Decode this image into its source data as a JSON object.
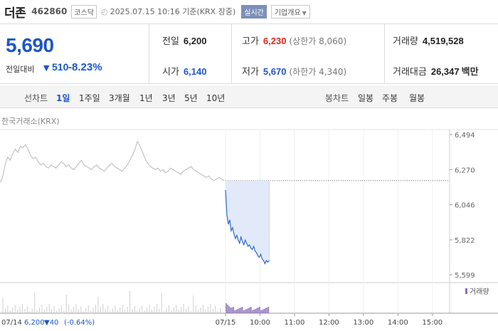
{
  "header": {
    "name": "더존",
    "code": "462860",
    "market": "코스닥",
    "datetime": "2025.07.15 10:16 기준(KRX 장중)",
    "realtime": "실시간",
    "overview": "기업개요"
  },
  "quote": {
    "price": "5,690",
    "change_label": "전일대비",
    "change_value": "510",
    "change_pct": "-8.23%",
    "prev_close": {
      "label": "전일",
      "value": "6,200"
    },
    "open": {
      "label": "시가",
      "value": "6,140"
    },
    "high": {
      "label": "고가",
      "value": "6,230",
      "sub": "(상한가 8,060)"
    },
    "low": {
      "label": "저가",
      "value": "5,670",
      "sub": "(하한가 4,340)"
    },
    "volume": {
      "label": "거래량",
      "value": "4,519,528"
    },
    "amount": {
      "label": "거래대금",
      "value": "26,347",
      "unit": "백만"
    }
  },
  "period_bar": {
    "line_label": "선차트",
    "line_periods": [
      "1일",
      "1주일",
      "3개월",
      "1년",
      "3년",
      "5년",
      "10년"
    ],
    "active": "1일",
    "candle_label": "봉차트",
    "candle_periods": [
      "일봉",
      "주봉",
      "월봉"
    ]
  },
  "chart_data": {
    "type": "line",
    "source_label": "한국거래소(KRX)",
    "y_ticks": [
      "6,494",
      "6,270",
      "6,046",
      "5,822",
      "5,599"
    ],
    "ylim": [
      5599,
      6494
    ],
    "x_labels": [
      "07/14",
      "07/15",
      "10:00",
      "11:00",
      "12:00",
      "13:00",
      "14:00",
      "15:00"
    ],
    "prev_close": 6200,
    "volume_legend": "거래량",
    "footer": {
      "date": "07/14",
      "price": "6,200",
      "change": "▼40",
      "pct": "(-0.64%)"
    },
    "series": [
      {
        "values_prev_day": [
          6190,
          6220,
          6300,
          6350,
          6330,
          6370,
          6400,
          6380,
          6420,
          6410,
          6430,
          6400,
          6360,
          6340,
          6350,
          6320,
          6300,
          6310,
          6290,
          6280,
          6300,
          6290,
          6280,
          6300,
          6320,
          6310,
          6290,
          6300,
          6280,
          6270,
          6290,
          6310,
          6330,
          6300,
          6290,
          6280,
          6270,
          6290,
          6300,
          6280,
          6270,
          6260,
          6280,
          6300,
          6310,
          6290,
          6280,
          6270,
          6260,
          6280,
          6300,
          6330,
          6360,
          6400,
          6450,
          6420,
          6380,
          6340,
          6310,
          6290,
          6280,
          6270,
          6280,
          6260,
          6270,
          6250,
          6260,
          6280,
          6270,
          6260,
          6250,
          6240,
          6260,
          6270,
          6280,
          6290,
          6270,
          6260,
          6250,
          6240,
          6230,
          6220,
          6230,
          6210,
          6200,
          6210,
          6220,
          6210,
          6200
        ],
        "values_today": [
          6140,
          5980,
          5920,
          5950,
          5880,
          5900,
          5860,
          5830,
          5850,
          5820,
          5800,
          5840,
          5810,
          5790,
          5820,
          5800,
          5780,
          5790,
          5770,
          5760,
          5780,
          5750,
          5740,
          5720,
          5710,
          5730,
          5700,
          5690,
          5670,
          5690,
          5680,
          5690
        ]
      }
    ]
  }
}
